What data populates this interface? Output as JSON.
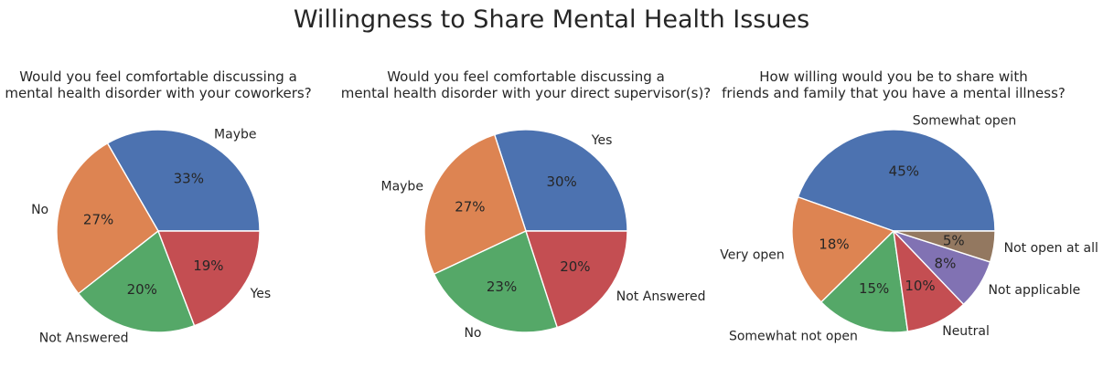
{
  "figure_title": "Willingness to Share Mental Health Issues",
  "chart_data": [
    {
      "type": "pie",
      "title_lines": [
        "Would you feel comfortable discussing a",
        "mental health disorder with your coworkers?"
      ],
      "labels": [
        "Maybe",
        "No",
        "Not Answered",
        "Yes"
      ],
      "values": [
        33,
        27,
        20,
        19
      ],
      "pct_labels": [
        "33%",
        "27%",
        "20%",
        "19%"
      ],
      "colors": [
        "#4c72b0",
        "#dd8452",
        "#55a868",
        "#c44e52"
      ]
    },
    {
      "type": "pie",
      "title_lines": [
        "Would you feel comfortable discussing a",
        "mental health disorder with your direct supervisor(s)?"
      ],
      "labels": [
        "Yes",
        "Maybe",
        "No",
        "Not Answered"
      ],
      "values": [
        30,
        27,
        23,
        20
      ],
      "pct_labels": [
        "30%",
        "27%",
        "23%",
        "20%"
      ],
      "colors": [
        "#4c72b0",
        "#dd8452",
        "#55a868",
        "#c44e52"
      ]
    },
    {
      "type": "pie",
      "title_lines": [
        "How willing would you be to share with",
        "friends and family that you have a mental illness?"
      ],
      "labels": [
        "Somewhat open",
        "Very open",
        "Somewhat not open",
        "Neutral",
        "Not applicable",
        "Not open at all"
      ],
      "values": [
        45,
        18,
        15,
        10,
        8,
        5
      ],
      "pct_labels": [
        "45%",
        "18%",
        "15%",
        "10%",
        "8%",
        "5%"
      ],
      "colors": [
        "#4c72b0",
        "#dd8452",
        "#55a868",
        "#c44e52",
        "#8172b3",
        "#937860"
      ]
    }
  ]
}
